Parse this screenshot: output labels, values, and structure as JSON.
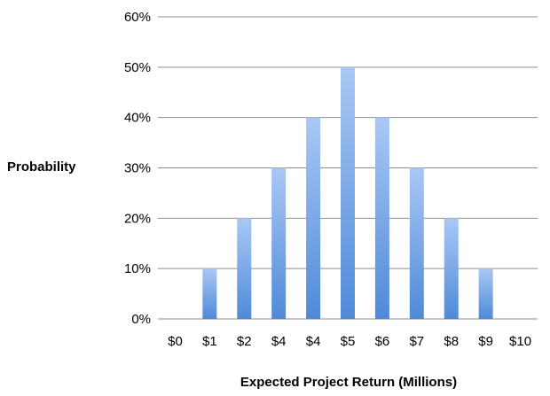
{
  "chart_data": {
    "type": "bar",
    "categories": [
      "$0",
      "$1",
      "$2",
      "$4",
      "$4",
      "$5",
      "$6",
      "$7",
      "$8",
      "$9",
      "$10"
    ],
    "values": [
      0,
      10,
      20,
      30,
      40,
      50,
      40,
      30,
      20,
      10,
      0
    ],
    "title": "",
    "xlabel": "Expected Project Return (Millions)",
    "ylabel": "Probability",
    "ylim": [
      0,
      60
    ],
    "yticks": [
      "0%",
      "10%",
      "20%",
      "30%",
      "40%",
      "50%",
      "60%"
    ],
    "grid": true,
    "legend": "none",
    "bar_color_top": "#a9c8f5",
    "bar_color_bottom": "#4f8ad8",
    "grid_color": "#8c8c8c"
  }
}
